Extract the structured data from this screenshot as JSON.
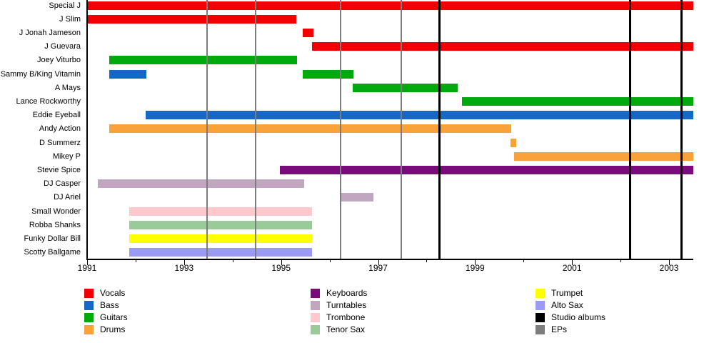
{
  "chart_data": {
    "type": "bar",
    "subtype": "gantt-band-member-timeline",
    "title": "",
    "xlabel": "",
    "ylabel": "",
    "x_axis": {
      "start": 1991,
      "end": 2003.5,
      "tick_years": [
        1991,
        1992,
        1993,
        1994,
        1995,
        1996,
        1997,
        1998,
        1999,
        2000,
        2001,
        2002,
        2003
      ],
      "labeled_years": [
        1991,
        1993,
        1995,
        1997,
        1999,
        2001,
        2003
      ]
    },
    "colors": {
      "Vocals": "#f20000",
      "Bass": "#1668c8",
      "Guitars": "#00a90c",
      "Drums": "#f9a238",
      "Keyboards": "#7a0b7a",
      "Turntables": "#c0a6c0",
      "Trombone": "#ffc9cd",
      "Tenor Sax": "#98cb98",
      "Trumpet": "#ffff00",
      "Alto Sax": "#9a9af8",
      "Studio albums": "#000000",
      "EPs": "#7d7d7d"
    },
    "members": [
      {
        "name": "Special J",
        "stints": [
          {
            "instrument": "Vocals",
            "start": 1991.0,
            "end": 2003.5
          }
        ]
      },
      {
        "name": "J Slim",
        "stints": [
          {
            "instrument": "Vocals",
            "start": 1991.0,
            "end": 1995.31
          }
        ]
      },
      {
        "name": "J Jonah Jameson",
        "stints": [
          {
            "instrument": "Vocals",
            "start": 1995.45,
            "end": 1995.67
          }
        ]
      },
      {
        "name": "J Guevara",
        "stints": [
          {
            "instrument": "Vocals",
            "start": 1995.64,
            "end": 2003.5
          }
        ]
      },
      {
        "name": "Joey Viturbo",
        "stints": [
          {
            "instrument": "Guitars",
            "start": 1991.46,
            "end": 1995.33
          }
        ]
      },
      {
        "name": "Sammy B/King Vitamin",
        "stints": [
          {
            "instrument": "Bass",
            "start": 1991.46,
            "end": 1992.22
          },
          {
            "instrument": "Guitars",
            "start": 1995.45,
            "end": 1996.49
          }
        ]
      },
      {
        "name": "A Mays",
        "stints": [
          {
            "instrument": "Guitars",
            "start": 1996.48,
            "end": 1998.64
          }
        ]
      },
      {
        "name": "Lance Rockworthy",
        "stints": [
          {
            "instrument": "Guitars",
            "start": 1998.73,
            "end": 2003.5
          }
        ]
      },
      {
        "name": "Eddie Eyeball",
        "stints": [
          {
            "instrument": "Bass",
            "start": 1992.21,
            "end": 2003.5
          }
        ]
      },
      {
        "name": "Andy Action",
        "stints": [
          {
            "instrument": "Drums",
            "start": 1991.46,
            "end": 1999.75
          }
        ]
      },
      {
        "name": "D Summerz",
        "stints": [
          {
            "instrument": "Drums",
            "start": 1999.73,
            "end": 1999.85
          }
        ]
      },
      {
        "name": "Mikey P",
        "stints": [
          {
            "instrument": "Drums",
            "start": 1999.8,
            "end": 2003.5
          }
        ]
      },
      {
        "name": "Stevie Spice",
        "stints": [
          {
            "instrument": "Keyboards",
            "start": 1994.98,
            "end": 2003.5
          }
        ]
      },
      {
        "name": "DJ Casper",
        "stints": [
          {
            "instrument": "Turntables",
            "start": 1991.22,
            "end": 1995.48
          }
        ]
      },
      {
        "name": "DJ Ariel",
        "stints": [
          {
            "instrument": "Turntables",
            "start": 1996.24,
            "end": 1996.9
          }
        ]
      },
      {
        "name": "Small Wonder",
        "stints": [
          {
            "instrument": "Trombone",
            "start": 1991.87,
            "end": 1995.64
          }
        ]
      },
      {
        "name": "Robba Shanks",
        "stints": [
          {
            "instrument": "Tenor Sax",
            "start": 1991.87,
            "end": 1995.64
          }
        ]
      },
      {
        "name": "Funky Dollar Bill",
        "stints": [
          {
            "instrument": "Trumpet",
            "start": 1991.87,
            "end": 1995.64
          }
        ]
      },
      {
        "name": "Scotty Ballgame",
        "stints": [
          {
            "instrument": "Alto Sax",
            "start": 1991.87,
            "end": 1995.64
          }
        ]
      }
    ],
    "releases": {
      "studio_albums": {
        "label": "Studio albums",
        "years": [
          1998.27,
          2002.2,
          2003.26
        ]
      },
      "eps": {
        "label": "EPs",
        "years": [
          1993.47,
          1994.48,
          1996.22,
          1997.48
        ]
      }
    },
    "legend": {
      "columns": [
        [
          "Vocals",
          "Bass",
          "Guitars",
          "Drums"
        ],
        [
          "Keyboards",
          "Turntables",
          "Trombone",
          "Tenor Sax"
        ],
        [
          "Trumpet",
          "Alto Sax",
          "Studio albums",
          "EPs"
        ]
      ]
    }
  }
}
